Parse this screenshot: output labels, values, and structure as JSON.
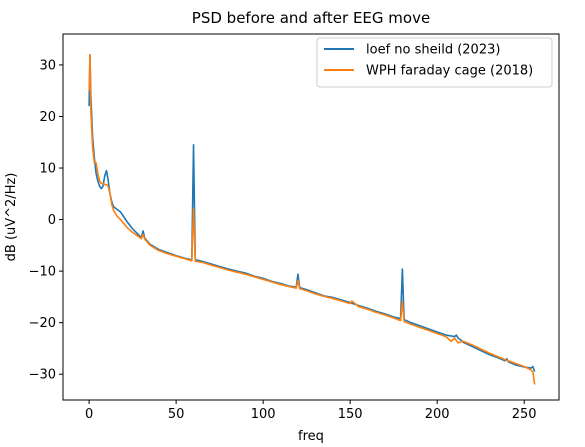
{
  "chart_data": {
    "type": "line",
    "title": "PSD before and after EEG move",
    "xlabel": "freq",
    "ylabel": "dB (uV^2/Hz)",
    "xlim": [
      -15,
      270
    ],
    "ylim": [
      -35,
      36
    ],
    "xticks": [
      0,
      50,
      100,
      150,
      200,
      250
    ],
    "yticks": [
      -30,
      -20,
      -10,
      0,
      10,
      20,
      30
    ],
    "grid": false,
    "legend_position": "upper right",
    "series": [
      {
        "name": "loef no sheild (2023)",
        "color": "#1f77b4",
        "x": [
          0,
          0.5,
          1,
          2,
          3,
          4,
          5,
          6,
          7,
          8,
          9,
          10,
          11,
          12,
          13,
          14,
          16,
          18,
          20,
          22,
          25,
          28,
          30,
          31,
          32,
          35,
          40,
          45,
          50,
          55,
          59,
          60,
          61,
          65,
          70,
          75,
          80,
          85,
          90,
          95,
          100,
          105,
          110,
          115,
          119,
          120,
          121,
          125,
          130,
          135,
          140,
          145,
          150,
          155,
          160,
          165,
          170,
          175,
          179,
          180,
          181,
          185,
          190,
          195,
          200,
          205,
          210,
          211,
          212,
          213,
          215,
          220,
          225,
          230,
          235,
          239,
          240,
          241,
          245,
          250,
          254,
          255,
          256
        ],
        "y": [
          22,
          32,
          24,
          16,
          12,
          9,
          7.5,
          6.5,
          6,
          6.5,
          8.5,
          9.5,
          7.5,
          5,
          3.5,
          2.5,
          2,
          1.5,
          0.5,
          -0.5,
          -1.8,
          -2.8,
          -3.5,
          -2.2,
          -3.6,
          -4.8,
          -5.8,
          -6.4,
          -7,
          -7.5,
          -7.8,
          14.5,
          -7.8,
          -8.1,
          -8.6,
          -9.1,
          -9.6,
          -10,
          -10.4,
          -11,
          -11.4,
          -12,
          -12.4,
          -12.9,
          -13.1,
          -10.6,
          -13.2,
          -13.6,
          -14.2,
          -14.8,
          -15.1,
          -15.6,
          -16.1,
          -16.7,
          -17.2,
          -17.8,
          -18.3,
          -18.9,
          -19.2,
          -9.6,
          -19.4,
          -20,
          -20.6,
          -21.2,
          -21.8,
          -22.4,
          -22.7,
          -22.4,
          -23,
          -23.2,
          -23.8,
          -24.6,
          -25.4,
          -26.2,
          -26.8,
          -27.4,
          -27,
          -27.6,
          -28.2,
          -28.6,
          -28.8,
          -28.5,
          -29.5
        ]
      },
      {
        "name": "WPH faraday cage (2018)",
        "color": "#ff7f0e",
        "x": [
          0,
          0.5,
          1,
          2,
          3,
          4,
          5,
          6,
          7,
          8,
          9,
          10,
          11,
          12,
          13,
          14,
          16,
          18,
          20,
          22,
          25,
          28,
          30,
          31,
          32,
          35,
          40,
          45,
          50,
          55,
          59,
          60,
          61,
          65,
          70,
          75,
          80,
          85,
          90,
          95,
          100,
          105,
          110,
          115,
          119,
          120,
          121,
          125,
          130,
          135,
          140,
          145,
          150,
          151,
          155,
          160,
          165,
          170,
          175,
          179,
          180,
          181,
          185,
          190,
          195,
          200,
          205,
          208,
          210,
          212,
          215,
          220,
          225,
          230,
          235,
          240,
          245,
          250,
          254,
          255,
          256
        ],
        "y": [
          25,
          32,
          21,
          14,
          11,
          11,
          9,
          7.5,
          7,
          7,
          6.8,
          6.8,
          6.4,
          5,
          3,
          1.8,
          0.7,
          0,
          -0.8,
          -1.6,
          -2.5,
          -3.2,
          -3.7,
          -2.9,
          -3.8,
          -5,
          -6,
          -6.6,
          -7.1,
          -7.6,
          -8,
          2.2,
          -8.1,
          -8.3,
          -8.8,
          -9.3,
          -9.8,
          -10.2,
          -10.6,
          -11.1,
          -11.6,
          -12.1,
          -12.6,
          -13,
          -13.3,
          -11.8,
          -13.4,
          -13.8,
          -14.4,
          -14.9,
          -15.3,
          -15.8,
          -16.3,
          -15.8,
          -16.9,
          -17.4,
          -18,
          -18.5,
          -19.1,
          -19.6,
          -15.8,
          -19.8,
          -20.3,
          -20.9,
          -21.5,
          -22.1,
          -22.7,
          -23.6,
          -23,
          -23.9,
          -23.6,
          -24.3,
          -25.1,
          -25.9,
          -26.6,
          -27.3,
          -27.9,
          -28.5,
          -29.2,
          -29.6,
          -32
        ]
      }
    ]
  }
}
